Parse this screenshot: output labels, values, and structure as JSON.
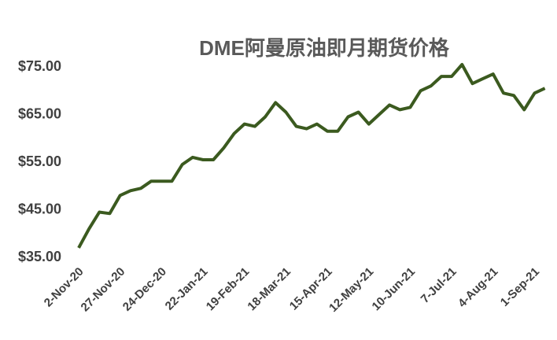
{
  "chart_data": {
    "type": "line",
    "title": "DME阿曼原油即月期货价格",
    "categories": [
      "2-Nov-20",
      null,
      null,
      null,
      "27-Nov-20",
      null,
      null,
      null,
      "24-Dec-20",
      null,
      null,
      null,
      "22-Jan-21",
      null,
      null,
      null,
      "19-Feb-21",
      null,
      null,
      null,
      "18-Mar-21",
      null,
      null,
      null,
      "15-Apr-21",
      null,
      null,
      null,
      "12-May-21",
      null,
      null,
      null,
      "10-Jun-21",
      null,
      null,
      null,
      "7-Jul-21",
      null,
      null,
      null,
      "4-Aug-21",
      null,
      null,
      null,
      "1-Sep-21",
      null
    ],
    "series": [
      {
        "name": "DME",
        "color": "#3b5a1f",
        "values": [
          37.0,
          41.0,
          44.5,
          44.2,
          48.0,
          49.0,
          49.5,
          51.0,
          51.0,
          51.0,
          54.5,
          56.0,
          55.5,
          55.5,
          58.0,
          61.0,
          63.0,
          62.5,
          64.5,
          67.5,
          65.5,
          62.5,
          62.0,
          63.0,
          61.5,
          61.5,
          64.5,
          65.5,
          63.0,
          65.0,
          67.0,
          66.0,
          66.5,
          70.0,
          71.0,
          73.0,
          73.0,
          75.5,
          71.5,
          72.5,
          73.5,
          69.5,
          69.0,
          66.0,
          69.5,
          70.5
        ]
      }
    ],
    "ylim": [
      35,
      75
    ],
    "yticks": [
      {
        "value": 35,
        "label": "$35.00"
      },
      {
        "value": 45,
        "label": "$45.00"
      },
      {
        "value": 55,
        "label": "$55.00"
      },
      {
        "value": 65,
        "label": "$65.00"
      },
      {
        "value": 75,
        "label": "$75.00"
      }
    ],
    "grid": false
  }
}
